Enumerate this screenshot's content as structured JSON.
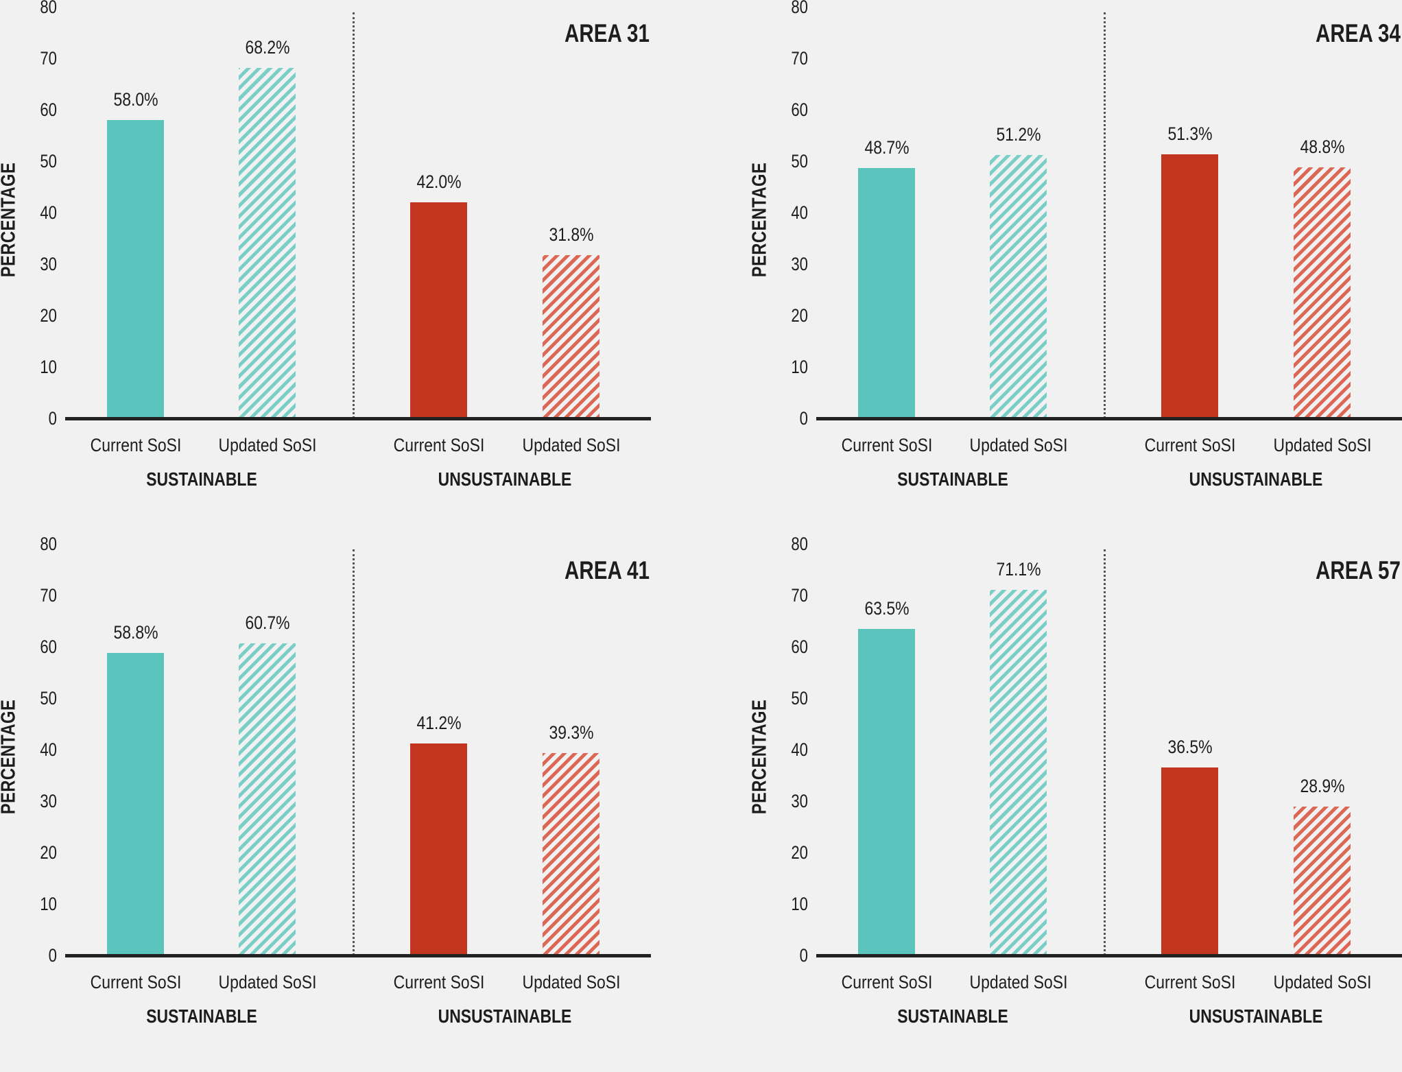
{
  "chart_data": [
    {
      "type": "bar",
      "title": "AREA 31",
      "ylabel": "PERCENTAGE",
      "ylim": [
        0,
        80
      ],
      "yticks": [
        "0",
        "10",
        "20",
        "30",
        "40",
        "50",
        "60",
        "70",
        "80"
      ],
      "groups": [
        "SUSTAINABLE",
        "UNSUSTAINABLE"
      ],
      "categories": [
        "Current SoSI",
        "Updated SoSI",
        "Current SoSI",
        "Updated SoSI"
      ],
      "values": [
        58.0,
        68.2,
        42.0,
        31.8
      ],
      "labels": [
        "58.0%",
        "68.2%",
        "42.0%",
        "31.8%"
      ]
    },
    {
      "type": "bar",
      "title": "AREA 34",
      "ylabel": "PERCENTAGE",
      "ylim": [
        0,
        80
      ],
      "yticks": [
        "0",
        "10",
        "20",
        "30",
        "40",
        "50",
        "60",
        "70",
        "80"
      ],
      "groups": [
        "SUSTAINABLE",
        "UNSUSTAINABLE"
      ],
      "categories": [
        "Current SoSI",
        "Updated SoSI",
        "Current SoSI",
        "Updated SoSI"
      ],
      "values": [
        48.7,
        51.2,
        51.3,
        48.8
      ],
      "labels": [
        "48.7%",
        "51.2%",
        "51.3%",
        "48.8%"
      ]
    },
    {
      "type": "bar",
      "title": "AREA 41",
      "ylabel": "PERCENTAGE",
      "ylim": [
        0,
        80
      ],
      "yticks": [
        "0",
        "10",
        "20",
        "30",
        "40",
        "50",
        "60",
        "70",
        "80"
      ],
      "groups": [
        "SUSTAINABLE",
        "UNSUSTAINABLE"
      ],
      "categories": [
        "Current SoSI",
        "Updated SoSI",
        "Current SoSI",
        "Updated SoSI"
      ],
      "values": [
        58.8,
        60.7,
        41.2,
        39.3
      ],
      "labels": [
        "58.8%",
        "60.7%",
        "41.2%",
        "39.3%"
      ]
    },
    {
      "type": "bar",
      "title": "AREA 57",
      "ylabel": "PERCENTAGE",
      "ylim": [
        0,
        80
      ],
      "yticks": [
        "0",
        "10",
        "20",
        "30",
        "40",
        "50",
        "60",
        "70",
        "80"
      ],
      "groups": [
        "SUSTAINABLE",
        "UNSUSTAINABLE"
      ],
      "categories": [
        "Current SoSI",
        "Updated SoSI",
        "Current SoSI",
        "Updated SoSI"
      ],
      "values": [
        63.5,
        71.1,
        36.5,
        28.9
      ],
      "labels": [
        "63.5%",
        "71.1%",
        "36.5%",
        "28.9%"
      ]
    }
  ],
  "colors": {
    "sustainable": "#5bc5bd",
    "sustainable_hatch": "#79cfc7",
    "unsustainable": "#c4351f",
    "unsustainable_hatch": "#dc6754",
    "background": "#f1f1f1"
  }
}
